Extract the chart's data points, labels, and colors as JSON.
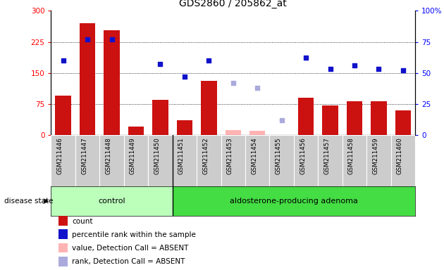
{
  "title": "GDS2860 / 205862_at",
  "samples": [
    "GSM211446",
    "GSM211447",
    "GSM211448",
    "GSM211449",
    "GSM211450",
    "GSM211451",
    "GSM211452",
    "GSM211453",
    "GSM211454",
    "GSM211455",
    "GSM211456",
    "GSM211457",
    "GSM211458",
    "GSM211459",
    "GSM211460"
  ],
  "counts": [
    95,
    270,
    253,
    20,
    85,
    35,
    130,
    null,
    null,
    null,
    90,
    72,
    82,
    82,
    60
  ],
  "counts_absent": [
    null,
    null,
    null,
    null,
    null,
    null,
    null,
    12,
    10,
    null,
    null,
    null,
    null,
    null,
    null
  ],
  "percentile_ranks": [
    60,
    77,
    77,
    null,
    57,
    47,
    60,
    null,
    null,
    null,
    62,
    53,
    56,
    53,
    52
  ],
  "percentile_ranks_absent": [
    null,
    null,
    null,
    null,
    null,
    null,
    null,
    42,
    38,
    12,
    null,
    null,
    null,
    null,
    null
  ],
  "group_control_range": [
    0,
    4
  ],
  "group_adenoma_range": [
    5,
    14
  ],
  "group_labels": [
    "control",
    "aldosterone-producing adenoma"
  ],
  "bar_color": "#cc1111",
  "bar_absent_color": "#ffb3b3",
  "dot_color": "#1111cc",
  "dot_absent_color": "#aaaadd",
  "group_ctrl_color": "#bbffbb",
  "group_aden_color": "#44dd44",
  "tick_area_color": "#cccccc",
  "legend_items": [
    {
      "label": "count",
      "color": "#cc1111"
    },
    {
      "label": "percentile rank within the sample",
      "color": "#1111cc"
    },
    {
      "label": "value, Detection Call = ABSENT",
      "color": "#ffb3b3"
    },
    {
      "label": "rank, Detection Call = ABSENT",
      "color": "#aaaadd"
    }
  ]
}
